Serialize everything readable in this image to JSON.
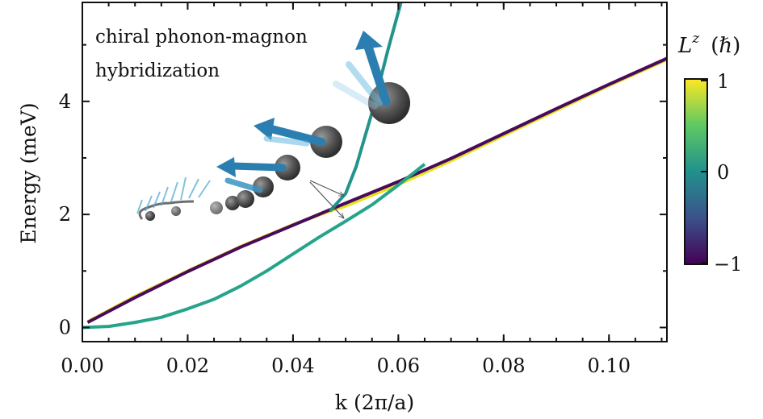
{
  "chart_data": {
    "type": "line",
    "xlabel": "k (2π/a)",
    "ylabel": "Energy (meV)",
    "xlim": [
      0,
      0.111
    ],
    "ylim": [
      -0.25,
      5.75
    ],
    "xticks": [
      "0.00",
      "0.02",
      "0.04",
      "0.06",
      "0.08",
      "0.10"
    ],
    "yticks": [
      "0",
      "2",
      "4"
    ],
    "annotation": [
      "chiral phonon-magnon",
      "hybridization"
    ],
    "colorbar": {
      "label": "L",
      "label_sup": "z",
      "label_unit": "(ℏ)",
      "min": -1,
      "max": 1,
      "ticks": [
        "1",
        "0",
        "−1"
      ],
      "colormap": [
        "#440154",
        "#3b528b",
        "#21918c",
        "#5ec962",
        "#fde725"
      ]
    },
    "series": [
      {
        "style": "phonon branch (Lz = +1)",
        "color": "#e6e31f",
        "x": [
          0.001,
          0.01,
          0.02,
          0.03,
          0.04,
          0.047,
          0.05,
          0.06,
          0.07,
          0.08,
          0.09,
          0.1,
          0.111
        ],
        "y": [
          0.1,
          0.55,
          1.0,
          1.43,
          1.82,
          2.06,
          2.15,
          2.53,
          2.95,
          3.4,
          3.84,
          4.28,
          4.74
        ]
      },
      {
        "style": "phonon branch (Lz = −1)",
        "color": "#4a0a5c",
        "x": [
          0.001,
          0.01,
          0.02,
          0.03,
          0.04,
          0.05,
          0.06,
          0.07,
          0.08,
          0.09,
          0.1,
          0.111
        ],
        "y": [
          0.09,
          0.53,
          0.99,
          1.42,
          1.81,
          2.2,
          2.58,
          2.99,
          3.43,
          3.87,
          4.3,
          4.76
        ]
      },
      {
        "style": "upper hybrid branch",
        "color": "#22948b",
        "x": [
          0.047,
          0.05,
          0.052,
          0.055,
          0.058,
          0.0605
        ],
        "y": [
          2.06,
          2.37,
          2.85,
          3.8,
          4.9,
          5.75
        ]
      },
      {
        "style": "magnon / lower hybrid branch",
        "color": "#26a48a",
        "x": [
          0.0,
          0.005,
          0.01,
          0.015,
          0.02,
          0.025,
          0.03,
          0.035,
          0.04,
          0.045,
          0.05,
          0.055,
          0.06,
          0.065
        ],
        "y": [
          0.0,
          0.02,
          0.09,
          0.18,
          0.33,
          0.5,
          0.73,
          1.0,
          1.3,
          1.6,
          1.88,
          2.17,
          2.52,
          2.89
        ]
      }
    ]
  }
}
